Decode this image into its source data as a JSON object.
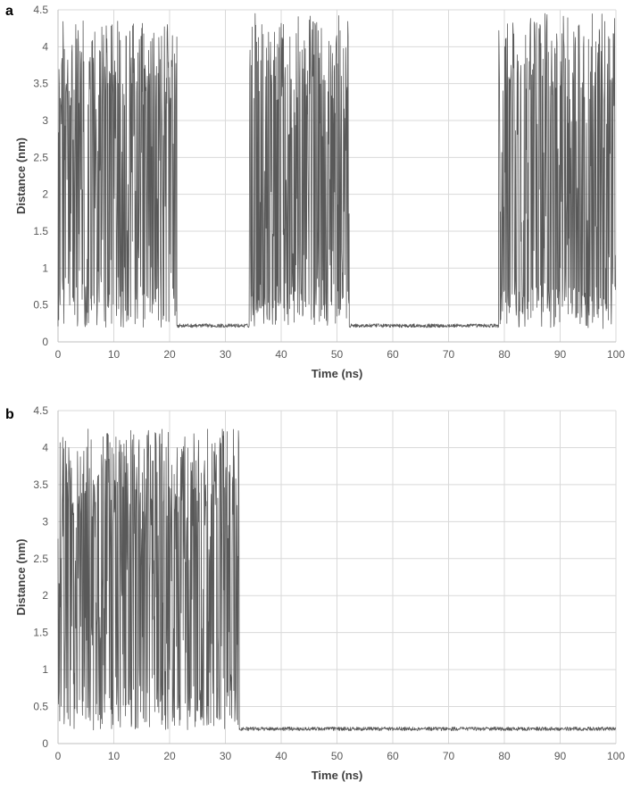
{
  "chart_data": [
    {
      "panel_label": "a",
      "type": "line",
      "xlabel": "Time (ns)",
      "ylabel": "Distance (nm)",
      "xlim": [
        0,
        100
      ],
      "ylim": [
        0,
        4.5
      ],
      "x_ticks": [
        0,
        10,
        20,
        30,
        40,
        50,
        60,
        70,
        80,
        90,
        100
      ],
      "y_ticks": [
        0,
        0.5,
        1,
        1.5,
        2,
        2.5,
        3,
        3.5,
        4,
        4.5
      ],
      "y_tick_labels": [
        "0",
        "0.5",
        "1",
        "1.5",
        "2",
        "2.5",
        "3",
        "3.5",
        "4",
        "4.5"
      ],
      "grid": true,
      "line_color": "#595959",
      "segments": [
        {
          "x_start": 0,
          "x_end": 21.3,
          "state": "fluctuating",
          "low": 0.2,
          "high": 4.35
        },
        {
          "x_start": 21.3,
          "x_end": 34.3,
          "state": "bound",
          "level": 0.22
        },
        {
          "x_start": 34.3,
          "x_end": 52.2,
          "state": "fluctuating",
          "low": 0.2,
          "high": 4.45
        },
        {
          "x_start": 52.2,
          "x_end": 79.0,
          "state": "bound",
          "level": 0.22
        },
        {
          "x_start": 79.0,
          "x_end": 100,
          "state": "fluctuating",
          "low": 0.18,
          "high": 4.45
        }
      ],
      "peaks": [
        [
          0.4,
          3.3
        ],
        [
          1.6,
          2.2
        ],
        [
          3.2,
          4.3
        ],
        [
          4.5,
          4.35
        ],
        [
          5.6,
          3.8
        ],
        [
          6.6,
          4.2
        ],
        [
          7.9,
          2.9
        ],
        [
          10.4,
          3.4
        ],
        [
          11.0,
          4.2
        ],
        [
          13.2,
          2.3
        ],
        [
          14.6,
          4.1
        ],
        [
          16.0,
          3.6
        ],
        [
          17.6,
          3.1
        ],
        [
          19.6,
          4.3
        ],
        [
          20.5,
          4.15
        ],
        [
          35.4,
          4.45
        ],
        [
          36.6,
          4.3
        ],
        [
          39.0,
          3.6
        ],
        [
          42.0,
          2.9
        ],
        [
          45.7,
          3.6
        ],
        [
          47.3,
          4.25
        ],
        [
          49.4,
          3.3
        ],
        [
          50.9,
          3.6
        ],
        [
          51.9,
          3.45
        ],
        [
          80.3,
          2.3
        ],
        [
          81.7,
          4.2
        ],
        [
          84.6,
          3.8
        ],
        [
          86.5,
          4.3
        ],
        [
          87.4,
          4.45
        ],
        [
          89.6,
          4.05
        ],
        [
          92.6,
          4.2
        ],
        [
          95.2,
          4.1
        ],
        [
          97.2,
          4.2
        ],
        [
          99.4,
          3.5
        ]
      ],
      "troughs": [
        [
          0.1,
          0.3
        ],
        [
          1.0,
          0.25
        ],
        [
          2.1,
          0.5
        ],
        [
          4.8,
          0.25
        ],
        [
          8.6,
          0.2
        ],
        [
          9.6,
          0.25
        ],
        [
          11.7,
          0.2
        ],
        [
          15.3,
          0.2
        ],
        [
          18.5,
          0.2
        ],
        [
          35.0,
          0.5
        ],
        [
          37.9,
          0.3
        ],
        [
          41.6,
          0.45
        ],
        [
          43.9,
          0.35
        ],
        [
          48.4,
          0.3
        ],
        [
          50.1,
          0.35
        ],
        [
          79.5,
          0.3
        ],
        [
          83.4,
          0.6
        ],
        [
          89.1,
          0.25
        ],
        [
          93.8,
          0.8
        ],
        [
          97.8,
          0.18
        ],
        [
          99.6,
          1.05
        ]
      ]
    },
    {
      "panel_label": "b",
      "type": "line",
      "xlabel": "Time (ns)",
      "ylabel": "Distance (nm)",
      "xlim": [
        0,
        100
      ],
      "ylim": [
        0,
        4.5
      ],
      "x_ticks": [
        0,
        10,
        20,
        30,
        40,
        50,
        60,
        70,
        80,
        90,
        100
      ],
      "y_ticks": [
        0,
        0.5,
        1,
        1.5,
        2,
        2.5,
        3,
        3.5,
        4,
        4.5
      ],
      "y_tick_labels": [
        "0",
        "0.5",
        "1",
        "1.5",
        "2",
        "2.5",
        "3",
        "3.5",
        "4",
        "4.5"
      ],
      "grid": true,
      "line_color": "#595959",
      "segments": [
        {
          "x_start": 0,
          "x_end": 32.5,
          "state": "fluctuating",
          "low": 0.18,
          "high": 4.25
        },
        {
          "x_start": 32.5,
          "x_end": 100,
          "state": "bound",
          "level": 0.2
        }
      ],
      "peaks": [
        [
          0.9,
          2.8
        ],
        [
          1.9,
          4.0
        ],
        [
          3.5,
          3.95
        ],
        [
          5.4,
          4.25
        ],
        [
          6.5,
          3.5
        ],
        [
          8.8,
          2.2
        ],
        [
          11.0,
          3.9
        ],
        [
          11.8,
          4.05
        ],
        [
          13.7,
          3.9
        ],
        [
          15.0,
          2.9
        ],
        [
          17.1,
          2.3
        ],
        [
          18.8,
          1.9
        ],
        [
          21.3,
          3.6
        ],
        [
          22.4,
          3.95
        ],
        [
          24.1,
          3.8
        ],
        [
          25.2,
          4.1
        ],
        [
          27.6,
          4.05
        ],
        [
          28.4,
          3.9
        ],
        [
          31.2,
          2.55
        ]
      ],
      "troughs": [
        [
          0.1,
          0.7
        ],
        [
          6.8,
          0.4
        ],
        [
          7.6,
          0.2
        ],
        [
          9.6,
          0.2
        ],
        [
          12.9,
          0.9
        ],
        [
          15.9,
          1.4
        ],
        [
          17.7,
          0.6
        ],
        [
          19.7,
          0.2
        ],
        [
          20.5,
          0.3
        ],
        [
          26.7,
          0.25
        ],
        [
          29.9,
          0.2
        ],
        [
          31.7,
          0.3
        ]
      ]
    }
  ]
}
